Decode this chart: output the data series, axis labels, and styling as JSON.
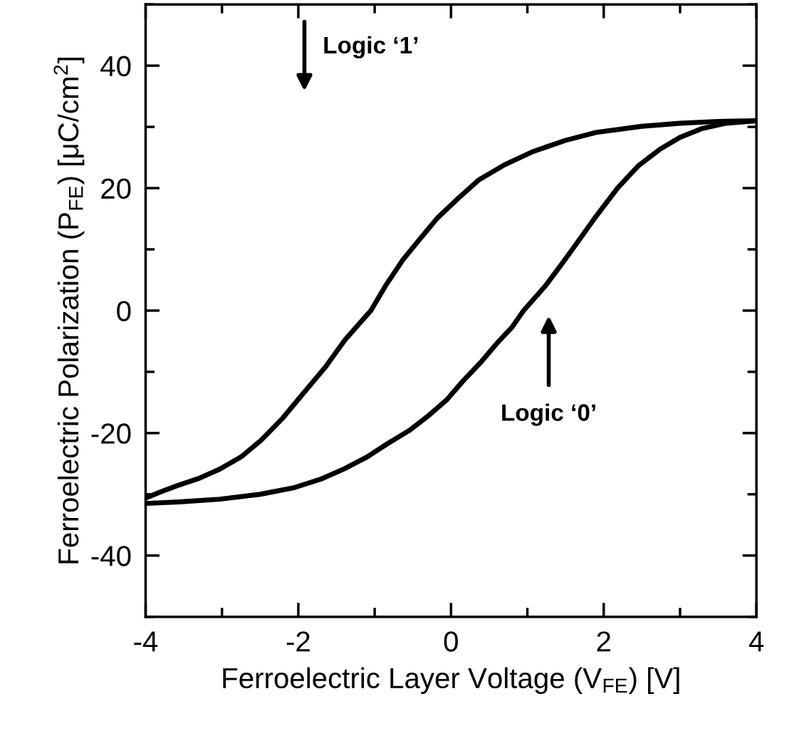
{
  "chart_data": {
    "type": "line",
    "xlabel": "Ferroelectric Layer Voltage (V$_{FE}$) [V]",
    "ylabel": "Ferroelectric Polarization (P$_{FE}$) [μC/cm$^{2}$]",
    "series": [
      {
        "color": "#000000",
        "x": [
          4,
          3.5,
          3.0,
          2.5,
          1.9,
          1.5,
          1.08,
          0.7,
          0.36,
          0.1,
          -0.18,
          -0.4,
          -0.63,
          -0.85,
          -1.05,
          -1.39,
          -1.65,
          -1.94,
          -2.2,
          -2.49,
          -2.75,
          -3.03,
          -3.3,
          -3.59,
          -3.8,
          -4
        ],
        "values": [
          31,
          30.9,
          30.6,
          30.1,
          29.1,
          27.8,
          26,
          23.8,
          21.3,
          18.4,
          15.1,
          11.8,
          8.3,
          4.2,
          0,
          -4.8,
          -9.3,
          -13.6,
          -17.5,
          -21.2,
          -23.9,
          -25.9,
          -27.4,
          -28.6,
          -29.6,
          -30.6
        ]
      },
      {
        "color": "#000000",
        "x": [
          -4,
          -3.5,
          -3.03,
          -2.5,
          -2.05,
          -1.7,
          -1.39,
          -1.1,
          -0.84,
          -0.55,
          -0.29,
          -0.05,
          0.15,
          0.4,
          0.59,
          0.8,
          0.95,
          1.24,
          1.45,
          1.63,
          1.9,
          2.18,
          2.45,
          2.73,
          3.0,
          3.28,
          3.6,
          4
        ],
        "values": [
          -31.5,
          -31.2,
          -30.8,
          -30,
          -28.9,
          -27.5,
          -25.8,
          -23.9,
          -21.8,
          -19.6,
          -17.1,
          -14.5,
          -11.6,
          -8.3,
          -5.5,
          -2.7,
          0,
          4.1,
          7.6,
          10.7,
          15.4,
          20,
          23.6,
          26.3,
          28.3,
          29.7,
          30.6,
          31
        ]
      }
    ],
    "xlim": [
      -4,
      4
    ],
    "xticks": [
      -4,
      -2,
      0,
      2,
      4
    ],
    "ylim": [
      -50,
      50
    ],
    "yticks": [
      -40,
      -20,
      0,
      20,
      40
    ],
    "annotations": [
      "Logic ‘1’",
      "Logic ‘0’"
    ],
    "line_style": "solid",
    "grid": false,
    "legend": false
  }
}
